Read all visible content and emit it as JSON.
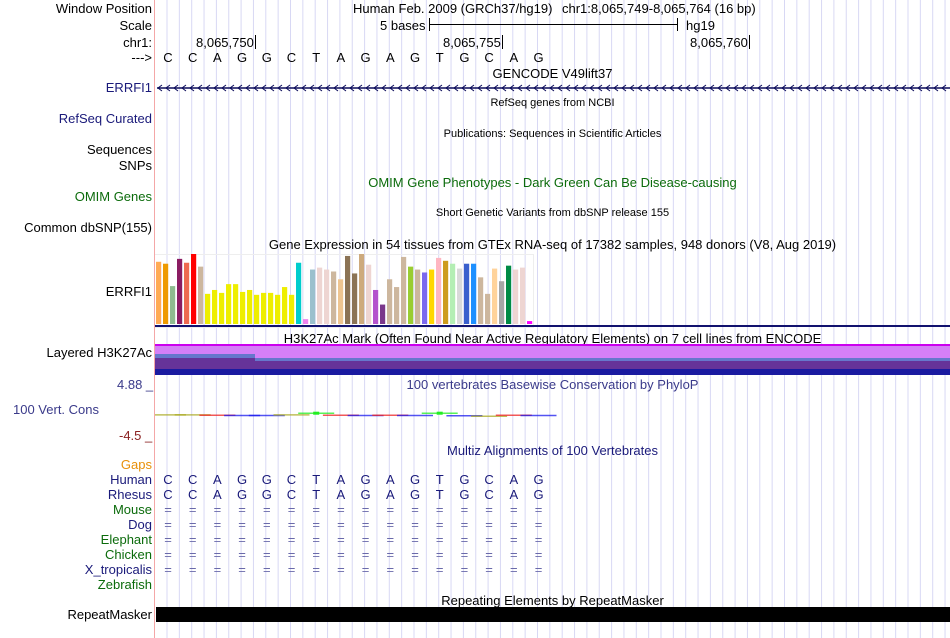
{
  "header": {
    "row_labels": [
      "Window Position",
      "Scale",
      "chr1:",
      "--->"
    ],
    "assembly": "Human Feb. 2009 (GRCh37/hg19)",
    "position": "chr1:8,065,749-8,065,764 (16 bp)",
    "scale_label": "5 bases",
    "scale_db": "hg19",
    "coord_ticks": [
      "8,065,750",
      "8,065,755",
      "8,065,760"
    ],
    "bases": [
      "C",
      "C",
      "A",
      "G",
      "G",
      "C",
      "T",
      "A",
      "G",
      "A",
      "G",
      "T",
      "G",
      "C",
      "A",
      "G"
    ]
  },
  "tracks": {
    "gencode": {
      "title": "GENCODE V49lift37",
      "label": "ERRFI1",
      "strand": "minus"
    },
    "refseq": {
      "title": "RefSeq genes from NCBI",
      "label": "RefSeq Curated"
    },
    "publications": {
      "title": "Publications: Sequences in Scientific Articles",
      "label_line1": "Sequences",
      "label_line2": "SNPs"
    },
    "omim": {
      "title": "OMIM Gene Phenotypes - Dark Green Can Be Disease-causing",
      "label": "OMIM Genes"
    },
    "dbsnp": {
      "title": "Short Genetic Variants from dbSNP release 155",
      "label": "Common dbSNP(155)"
    },
    "gtex": {
      "title": "Gene Expression in 54 tissues from GTEx RNA-seq of 17382 samples, 948 donors (V8, Aug 2019)",
      "label": "ERRFI1"
    },
    "h3k27ac": {
      "title": "H3K27Ac Mark (Often Found Near Active Regulatory Elements) on 7 cell lines from ENCODE",
      "label": "Layered H3K27Ac"
    },
    "phylop": {
      "title": "100 vertebrates Basewise Conservation by PhyloP",
      "label": "100 Vert. Cons",
      "max": "4.88 _",
      "min": "-4.5 _"
    },
    "multiz": {
      "title": "Multiz Alignments of 100 Vertebrates",
      "gaps_label": "Gaps",
      "species": [
        {
          "name": "Human",
          "color": "#1a1a7a",
          "row": "bases"
        },
        {
          "name": "Rhesus",
          "color": "#1a1a7a",
          "row": "bases"
        },
        {
          "name": "Mouse",
          "color": "#0b6b0b",
          "row": "eq"
        },
        {
          "name": "Dog",
          "color": "#1a1a7a",
          "row": "eq"
        },
        {
          "name": "Elephant",
          "color": "#0b6b0b",
          "row": "eq"
        },
        {
          "name": "Chicken",
          "color": "#0b6b0b",
          "row": "eq"
        },
        {
          "name": "X_tropicalis",
          "color": "#1a1a7a",
          "row": "eq"
        },
        {
          "name": "Zebrafish",
          "color": "#0b6b0b",
          "row": "none"
        }
      ],
      "eq_symbol": "="
    },
    "repeatmasker": {
      "title": "Repeating Elements by RepeatMasker",
      "label": "RepeatMasker"
    }
  },
  "chart_data": {
    "type": "bar",
    "title": "Gene Expression in 54 tissues from GTEx RNA-seq of 17382 samples, 948 donors (V8, Aug 2019)",
    "xlabel": "",
    "ylabel": "",
    "values": [
      64,
      62,
      39,
      67,
      63,
      72,
      59,
      31,
      35,
      32,
      41,
      41,
      33,
      35,
      30,
      32,
      32,
      30,
      38,
      30,
      63,
      5,
      56,
      58,
      56,
      54,
      46,
      70,
      52,
      72,
      61,
      35,
      20,
      46,
      38,
      69,
      59,
      56,
      53,
      56,
      68,
      65,
      62,
      57,
      62,
      62,
      48,
      31,
      57,
      44,
      60,
      56,
      58,
      3
    ],
    "colors": [
      "#ffaa55",
      "#ee9a00",
      "#8fbc8f",
      "#8b1c62",
      "#ee6a50",
      "#ff0000",
      "#cdb79e",
      "#eeee00",
      "#eeee00",
      "#eeee00",
      "#eeee00",
      "#eeee00",
      "#eeee00",
      "#eeee00",
      "#eeee00",
      "#eeee00",
      "#eeee00",
      "#eeee00",
      "#eeee00",
      "#eeee00",
      "#00cdcd",
      "#ee82ee",
      "#9ac0cd",
      "#eed5d2",
      "#eed5d2",
      "#cdb79e",
      "#eec591",
      "#8b7355",
      "#8b7355",
      "#cdaa7d",
      "#eed5d2",
      "#b452cd",
      "#7a378b",
      "#cdb79e",
      "#cdb79e",
      "#cdb79e",
      "#9acd32",
      "#cdb79e",
      "#7b68ee",
      "#ffd700",
      "#ffb6c1",
      "#cd9b1d",
      "#b4eeb4",
      "#d9d9d9",
      "#3a5fcd",
      "#1e90ff",
      "#cdb79e",
      "#cdb79e",
      "#ffd39b",
      "#a6a6a6",
      "#008b45",
      "#eed5d2",
      "#eed5d2",
      "#ff00ff"
    ]
  },
  "phylop_data": {
    "values": [
      0.1,
      0.1,
      -0.2,
      -0.3,
      -0.3,
      0.1,
      1.2,
      -0.2,
      -0.3,
      -0.2,
      -0.3,
      1.2,
      -0.5,
      -0.8,
      -0.2,
      -0.3
    ],
    "colors": [
      "#aaaa22",
      "#aaaa22",
      "#ee2222",
      "#1a1aee",
      "#1a1aee",
      "#aaaa22",
      "#22ee22",
      "#ee2222",
      "#1a1aee",
      "#ee2222",
      "#1a1aee",
      "#22ee22",
      "#1a1aee",
      "#aaaa22",
      "#ee2222",
      "#1a1aee"
    ]
  },
  "h3k27ac_data": {
    "layers": [
      "#cc00ee",
      "#d57ff7",
      "#6677cc",
      "#663399",
      "#1a1aa0"
    ]
  }
}
